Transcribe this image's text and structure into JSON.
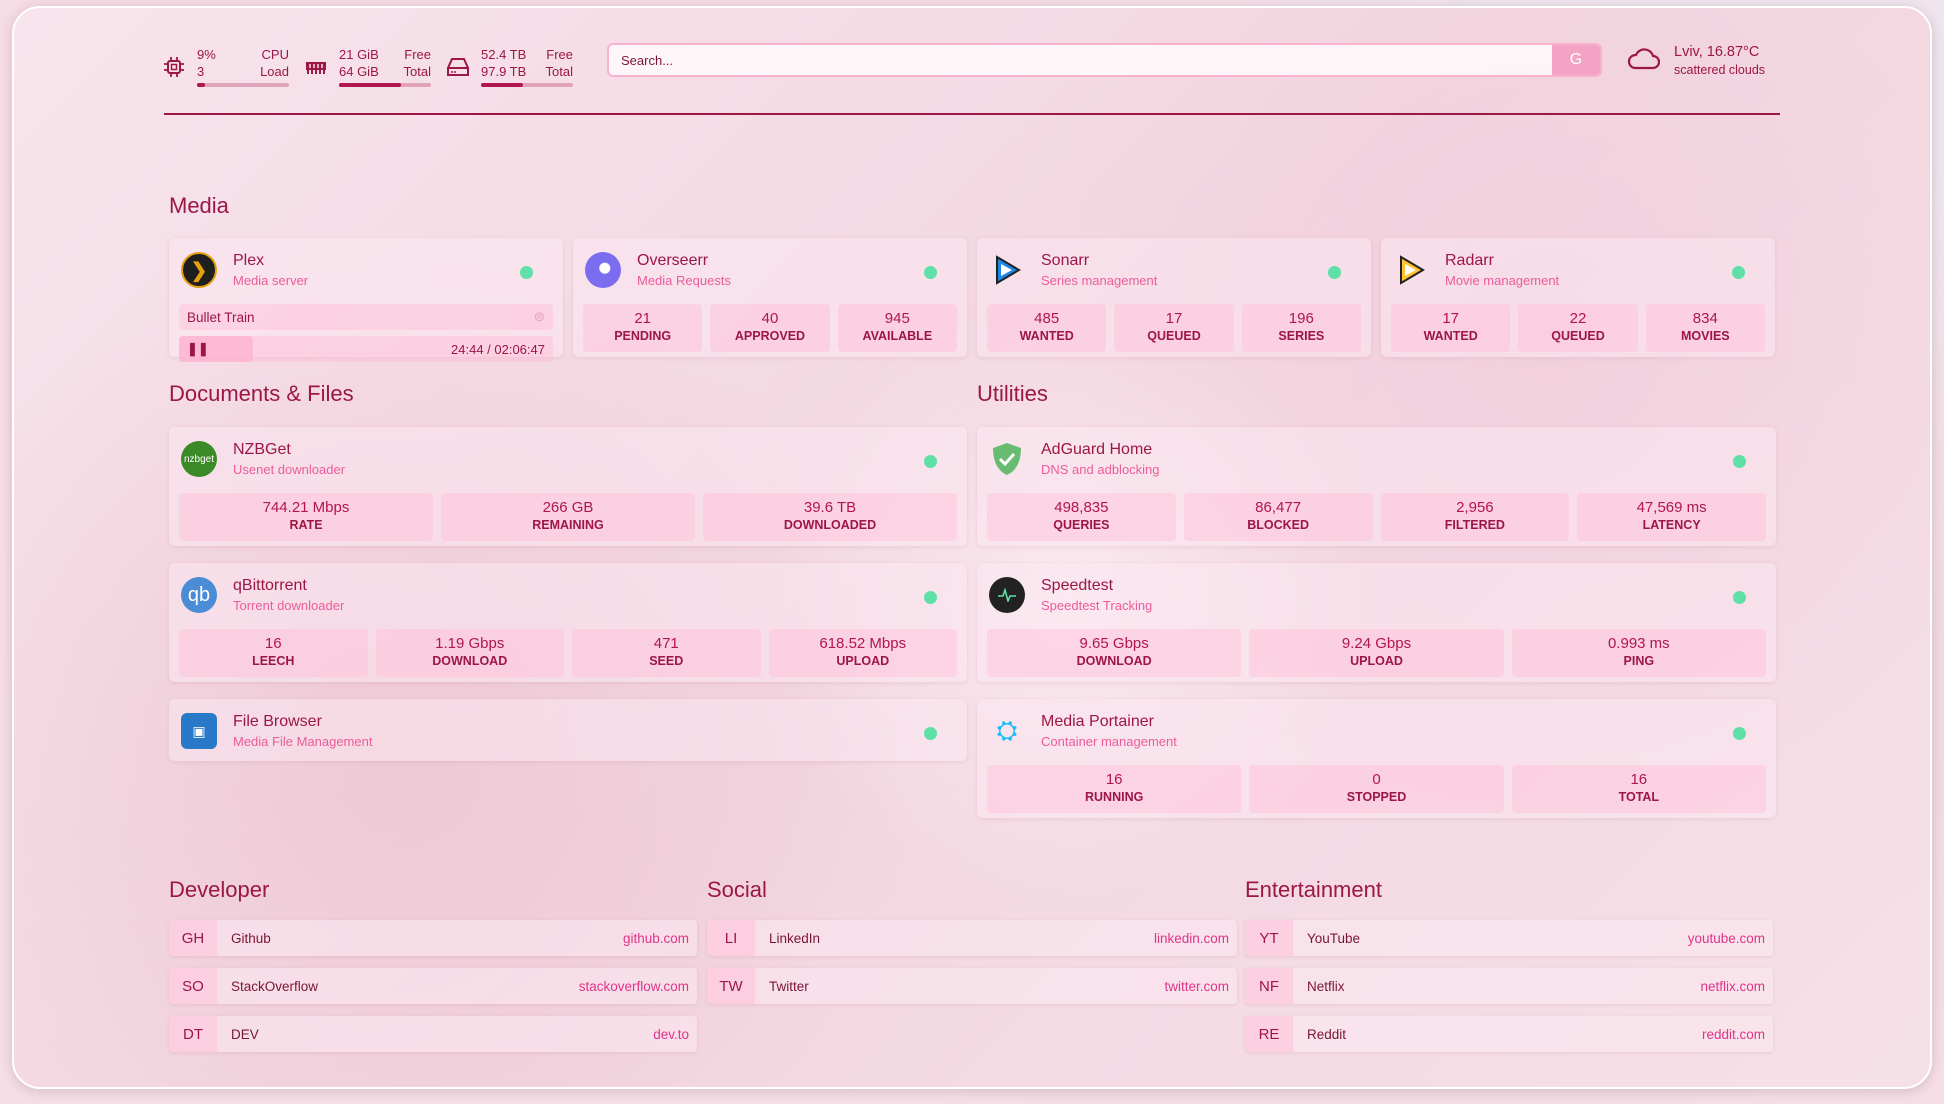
{
  "header": {
    "cpu": {
      "value": "9%",
      "cores": "3",
      "label1": "CPU",
      "label2": "Load",
      "fill": 0.09
    },
    "memory": {
      "free": "21 GiB",
      "total": "64 GiB",
      "label1": "Free",
      "label2": "Total",
      "fill": 0.67
    },
    "disk": {
      "free": "52.4 TB",
      "total": "97.9 TB",
      "label1": "Free",
      "label2": "Total",
      "fill": 0.46
    },
    "search": {
      "placeholder": "Search...",
      "engine": "G"
    },
    "weather": {
      "location": "Lviv, 16.87°C",
      "condition": "scattered clouds",
      "icon": "cloud-icon"
    }
  },
  "colors": {
    "primary": "#9c1646",
    "accent": "#ec5c9c",
    "status_up": "#5fe0a8"
  },
  "media": {
    "title": "Media",
    "cards": [
      {
        "name": "Plex",
        "desc": "Media server",
        "icon": "plex-icon",
        "np": {
          "title": "Bullet Train",
          "time": "24:44 / 02:06:47"
        }
      },
      {
        "name": "Overseerr",
        "desc": "Media Requests",
        "icon": "overseerr-icon",
        "stats": [
          {
            "v": "21",
            "l": "PENDING"
          },
          {
            "v": "40",
            "l": "APPROVED"
          },
          {
            "v": "945",
            "l": "AVAILABLE"
          }
        ]
      },
      {
        "name": "Sonarr",
        "desc": "Series management",
        "icon": "sonarr-icon",
        "stats": [
          {
            "v": "485",
            "l": "WANTED"
          },
          {
            "v": "17",
            "l": "QUEUED"
          },
          {
            "v": "196",
            "l": "SERIES"
          }
        ]
      },
      {
        "name": "Radarr",
        "desc": "Movie management",
        "icon": "radarr-icon",
        "stats": [
          {
            "v": "17",
            "l": "WANTED"
          },
          {
            "v": "22",
            "l": "QUEUED"
          },
          {
            "v": "834",
            "l": "MOVIES"
          }
        ]
      }
    ]
  },
  "docs": {
    "title": "Documents & Files",
    "cards": [
      {
        "name": "NZBGet",
        "desc": "Usenet downloader",
        "icon": "nzbget-icon",
        "icon_text": "nzbget",
        "stats": [
          {
            "v": "744.21 Mbps",
            "l": "RATE"
          },
          {
            "v": "266 GB",
            "l": "REMAINING"
          },
          {
            "v": "39.6 TB",
            "l": "DOWNLOADED"
          }
        ]
      },
      {
        "name": "qBittorrent",
        "desc": "Torrent downloader",
        "icon": "qbittorrent-icon",
        "icon_text": "qb",
        "stats": [
          {
            "v": "16",
            "l": "LEECH"
          },
          {
            "v": "1.19 Gbps",
            "l": "DOWNLOAD"
          },
          {
            "v": "471",
            "l": "SEED"
          },
          {
            "v": "618.52 Mbps",
            "l": "UPLOAD"
          }
        ]
      },
      {
        "name": "File Browser",
        "desc": "Media File Management",
        "icon": "filebrowser-icon"
      }
    ]
  },
  "utilities": {
    "title": "Utilities",
    "cards": [
      {
        "name": "AdGuard Home",
        "desc": "DNS and adblocking",
        "icon": "adguard-icon",
        "stats": [
          {
            "v": "498,835",
            "l": "QUERIES"
          },
          {
            "v": "86,477",
            "l": "BLOCKED"
          },
          {
            "v": "2,956",
            "l": "FILTERED"
          },
          {
            "v": "47,569 ms",
            "l": "LATENCY"
          }
        ]
      },
      {
        "name": "Speedtest",
        "desc": "Speedtest Tracking",
        "icon": "speedtest-icon",
        "stats": [
          {
            "v": "9.65 Gbps",
            "l": "DOWNLOAD"
          },
          {
            "v": "9.24 Gbps",
            "l": "UPLOAD"
          },
          {
            "v": "0.993 ms",
            "l": "PING"
          }
        ]
      },
      {
        "name": "Media Portainer",
        "desc": "Container management",
        "icon": "portainer-icon",
        "stats": [
          {
            "v": "16",
            "l": "RUNNING"
          },
          {
            "v": "0",
            "l": "STOPPED"
          },
          {
            "v": "16",
            "l": "TOTAL"
          }
        ]
      }
    ]
  },
  "bookmarks": [
    {
      "title": "Developer",
      "items": [
        {
          "abbr": "GH",
          "name": "Github",
          "url": "github.com"
        },
        {
          "abbr": "SO",
          "name": "StackOverflow",
          "url": "stackoverflow.com"
        },
        {
          "abbr": "DT",
          "name": "DEV",
          "url": "dev.to"
        }
      ]
    },
    {
      "title": "Social",
      "items": [
        {
          "abbr": "LI",
          "name": "LinkedIn",
          "url": "linkedin.com"
        },
        {
          "abbr": "TW",
          "name": "Twitter",
          "url": "twitter.com"
        }
      ]
    },
    {
      "title": "Entertainment",
      "items": [
        {
          "abbr": "YT",
          "name": "YouTube",
          "url": "youtube.com"
        },
        {
          "abbr": "NF",
          "name": "Netflix",
          "url": "netflix.com"
        },
        {
          "abbr": "RE",
          "name": "Reddit",
          "url": "reddit.com"
        }
      ]
    }
  ]
}
